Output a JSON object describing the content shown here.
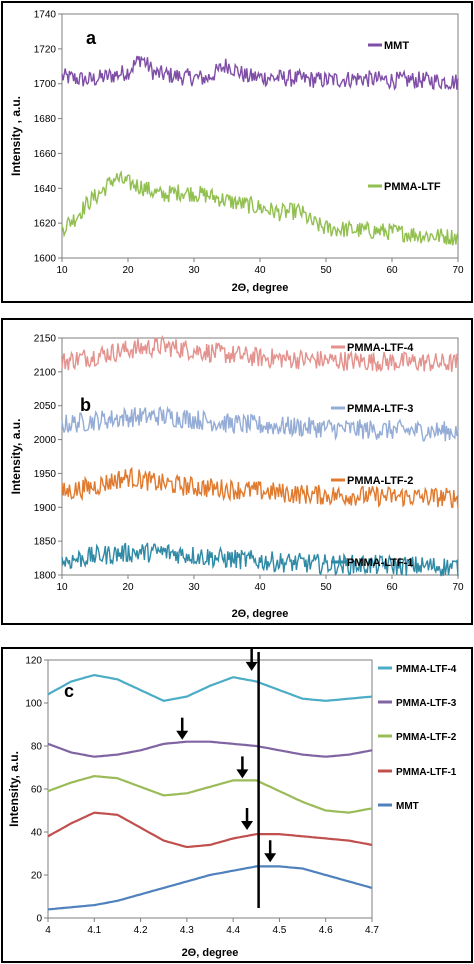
{
  "chart_data": [
    {
      "type": "line",
      "panel_label": "a",
      "xlabel": "2Θ, degree",
      "ylabel": "Intensity , a.u.",
      "xlim": [
        10,
        70
      ],
      "ylim": [
        1600,
        1740
      ],
      "xticks": [
        10,
        20,
        30,
        40,
        50,
        60,
        70
      ],
      "yticks": [
        1600,
        1620,
        1640,
        1660,
        1680,
        1700,
        1720,
        1740
      ],
      "legend_placement": "right, next to each curve",
      "series": [
        {
          "name": "MMT",
          "color": "#7f4ea6",
          "x": [
            10,
            14,
            18,
            20,
            22,
            24,
            28,
            32,
            35,
            38,
            45,
            50,
            55,
            60,
            65,
            70
          ],
          "y": [
            1704,
            1702,
            1705,
            1707,
            1715,
            1706,
            1704,
            1703,
            1711,
            1704,
            1703,
            1702,
            1703,
            1702,
            1702,
            1701
          ]
        },
        {
          "name": "PMMA-LTF",
          "color": "#92c050",
          "x": [
            10,
            12,
            14,
            16,
            18,
            20,
            22,
            25,
            28,
            32,
            36,
            40,
            43,
            46,
            48,
            50,
            55,
            60,
            65,
            70
          ],
          "y": [
            1617,
            1623,
            1632,
            1638,
            1646,
            1643,
            1641,
            1636,
            1638,
            1636,
            1632,
            1629,
            1626,
            1627,
            1620,
            1617,
            1616,
            1615,
            1613,
            1612
          ]
        }
      ]
    },
    {
      "type": "line",
      "panel_label": "b",
      "xlabel": "2Θ, degree",
      "ylabel": "Intensity, a.u.",
      "xlim": [
        10,
        70
      ],
      "ylim": [
        1800,
        2150
      ],
      "xticks": [
        10,
        20,
        30,
        40,
        50,
        60,
        70
      ],
      "yticks": [
        1800,
        1850,
        1900,
        1950,
        2000,
        2050,
        2100,
        2150
      ],
      "legend_placement": "right, above each curve",
      "series": [
        {
          "name": "PMMA-LTF-4",
          "color": "#e3928d",
          "x": [
            10,
            15,
            20,
            25,
            30,
            35,
            40,
            45,
            50,
            55,
            60,
            65,
            70
          ],
          "y": [
            2115,
            2124,
            2133,
            2138,
            2132,
            2126,
            2121,
            2119,
            2117,
            2116,
            2115,
            2114,
            2112
          ]
        },
        {
          "name": "PMMA-LTF-3",
          "color": "#94acd6",
          "x": [
            10,
            15,
            20,
            25,
            30,
            35,
            40,
            45,
            50,
            55,
            60,
            65,
            70
          ],
          "y": [
            2022,
            2028,
            2033,
            2035,
            2030,
            2024,
            2021,
            2019,
            2017,
            2015,
            2014,
            2013,
            2012
          ]
        },
        {
          "name": "PMMA-LTF-2",
          "color": "#e07a2e",
          "x": [
            10,
            15,
            18,
            20,
            25,
            30,
            35,
            40,
            45,
            50,
            55,
            60,
            65,
            70
          ],
          "y": [
            1922,
            1931,
            1940,
            1945,
            1935,
            1930,
            1927,
            1924,
            1920,
            1918,
            1917,
            1916,
            1915,
            1914
          ]
        },
        {
          "name": "PMMA-LTF-1",
          "color": "#2f8aa6",
          "x": [
            10,
            15,
            20,
            25,
            30,
            35,
            40,
            45,
            50,
            55,
            60,
            65,
            70
          ],
          "y": [
            1820,
            1828,
            1833,
            1834,
            1829,
            1824,
            1821,
            1818,
            1816,
            1815,
            1814,
            1813,
            1812
          ]
        }
      ]
    },
    {
      "type": "line",
      "panel_label": "c",
      "xlabel": "2Θ, degree",
      "ylabel": "Intensity, a.u.",
      "xlim": [
        4,
        4.7
      ],
      "ylim": [
        0,
        120
      ],
      "xticks": [
        "4",
        "4.1",
        "4.2",
        "4.3",
        "4.4",
        "4.5",
        "4.6",
        "4.7"
      ],
      "yticks": [
        0,
        20,
        40,
        60,
        80,
        100,
        120
      ],
      "vertical_line_x": 4.455,
      "legend_placement": "right",
      "series": [
        {
          "name": "PMMA-LTF-4",
          "color": "#4bacc6",
          "x": [
            4,
            4.05,
            4.1,
            4.15,
            4.2,
            4.25,
            4.3,
            4.35,
            4.4,
            4.45,
            4.5,
            4.55,
            4.6,
            4.65,
            4.7
          ],
          "y": [
            104,
            110,
            113,
            111,
            106,
            101,
            103,
            108,
            112,
            110,
            106,
            102,
            101,
            102,
            103
          ]
        },
        {
          "name": "PMMA-LTF-3",
          "color": "#8064a2",
          "x": [
            4,
            4.05,
            4.1,
            4.15,
            4.2,
            4.25,
            4.3,
            4.35,
            4.4,
            4.45,
            4.5,
            4.55,
            4.6,
            4.65,
            4.7
          ],
          "y": [
            81,
            77,
            75,
            76,
            78,
            81,
            82,
            82,
            81,
            80,
            78,
            76,
            75,
            76,
            78
          ]
        },
        {
          "name": "PMMA-LTF-2",
          "color": "#9bbb59",
          "x": [
            4,
            4.05,
            4.1,
            4.15,
            4.2,
            4.25,
            4.3,
            4.35,
            4.4,
            4.45,
            4.5,
            4.55,
            4.6,
            4.65,
            4.7
          ],
          "y": [
            59,
            63,
            66,
            65,
            61,
            57,
            58,
            61,
            64,
            64,
            59,
            54,
            50,
            49,
            51
          ]
        },
        {
          "name": "PMMA-LTF-1",
          "color": "#c0504d",
          "x": [
            4,
            4.05,
            4.1,
            4.15,
            4.2,
            4.25,
            4.3,
            4.35,
            4.4,
            4.45,
            4.5,
            4.55,
            4.6,
            4.65,
            4.7
          ],
          "y": [
            38,
            44,
            49,
            48,
            42,
            36,
            33,
            34,
            37,
            39,
            39,
            38,
            37,
            36,
            34
          ]
        },
        {
          "name": "MMT",
          "color": "#4f81bd",
          "x": [
            4,
            4.05,
            4.1,
            4.15,
            4.2,
            4.25,
            4.3,
            4.35,
            4.4,
            4.45,
            4.5,
            4.55,
            4.6,
            4.65,
            4.7
          ],
          "y": [
            4,
            5,
            6,
            8,
            11,
            14,
            17,
            20,
            22,
            24,
            24,
            23,
            20,
            17,
            14
          ]
        }
      ],
      "arrows_at": [
        {
          "x": 4.44,
          "y": 114
        },
        {
          "x": 4.29,
          "y": 82
        },
        {
          "x": 4.42,
          "y": 64
        },
        {
          "x": 4.43,
          "y": 40
        },
        {
          "x": 4.48,
          "y": 25
        }
      ]
    }
  ]
}
